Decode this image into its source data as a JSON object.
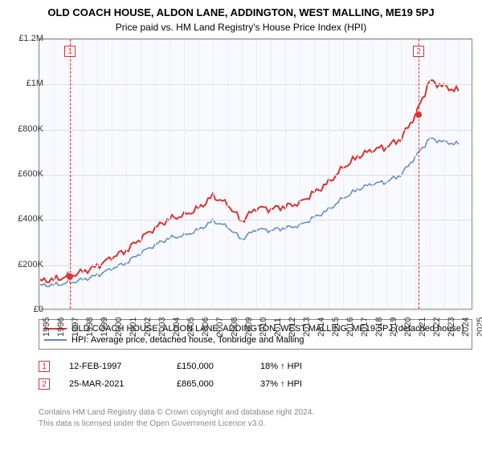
{
  "title": "OLD COACH HOUSE, ALDON LANE, ADDINGTON, WEST MALLING, ME19 5PJ",
  "subtitle": "Price paid vs. HM Land Registry's House Price Index (HPI)",
  "chart": {
    "type": "line",
    "background_color": "#f8faff",
    "border_color": "#888888",
    "grid_color": "#dddddd",
    "title_fontsize": 13,
    "subtitle_fontsize": 12,
    "axis_fontsize": 11,
    "y_axis": {
      "min": 0,
      "max": 1200000,
      "ticks": [
        0,
        200000,
        400000,
        600000,
        800000,
        1000000,
        1200000
      ],
      "labels": [
        "£0",
        "£200K",
        "£400K",
        "£600K",
        "£800K",
        "£1M",
        "£1.2M"
      ]
    },
    "x_axis": {
      "min": 1995,
      "max": 2025,
      "ticks": [
        1995,
        1996,
        1997,
        1998,
        1999,
        2000,
        2001,
        2002,
        2003,
        2004,
        2005,
        2006,
        2007,
        2008,
        2009,
        2010,
        2011,
        2012,
        2013,
        2014,
        2015,
        2016,
        2017,
        2018,
        2019,
        2020,
        2021,
        2022,
        2023,
        2024,
        2025
      ]
    },
    "series": [
      {
        "name": "property",
        "label": "OLD COACH HOUSE, ALDON LANE, ADDINGTON, WEST MALLING, ME19 5PJ (detached house)",
        "color": "#e03030",
        "line_width": 2,
        "data": [
          [
            1995,
            130000
          ],
          [
            1996,
            135000
          ],
          [
            1997,
            150000
          ],
          [
            1998,
            170000
          ],
          [
            1999,
            195000
          ],
          [
            2000,
            235000
          ],
          [
            2001,
            265000
          ],
          [
            2002,
            320000
          ],
          [
            2003,
            365000
          ],
          [
            2004,
            405000
          ],
          [
            2005,
            420000
          ],
          [
            2006,
            450000
          ],
          [
            2007,
            505000
          ],
          [
            2008,
            470000
          ],
          [
            2009,
            395000
          ],
          [
            2010,
            455000
          ],
          [
            2011,
            450000
          ],
          [
            2012,
            460000
          ],
          [
            2013,
            475000
          ],
          [
            2014,
            520000
          ],
          [
            2015,
            565000
          ],
          [
            2016,
            630000
          ],
          [
            2017,
            680000
          ],
          [
            2018,
            710000
          ],
          [
            2019,
            725000
          ],
          [
            2020,
            760000
          ],
          [
            2021,
            865000
          ],
          [
            2022,
            1015000
          ],
          [
            2023,
            990000
          ],
          [
            2024,
            970000
          ]
        ]
      },
      {
        "name": "hpi",
        "label": "HPI: Average price, detached house, Tonbridge and Malling",
        "color": "#6088c0",
        "line_width": 1.5,
        "data": [
          [
            1995,
            110000
          ],
          [
            1996,
            112000
          ],
          [
            1997,
            120000
          ],
          [
            1998,
            135000
          ],
          [
            1999,
            155000
          ],
          [
            2000,
            185000
          ],
          [
            2001,
            210000
          ],
          [
            2002,
            255000
          ],
          [
            2003,
            290000
          ],
          [
            2004,
            320000
          ],
          [
            2005,
            330000
          ],
          [
            2006,
            355000
          ],
          [
            2007,
            395000
          ],
          [
            2008,
            370000
          ],
          [
            2009,
            315000
          ],
          [
            2010,
            360000
          ],
          [
            2011,
            355000
          ],
          [
            2012,
            365000
          ],
          [
            2013,
            375000
          ],
          [
            2014,
            410000
          ],
          [
            2015,
            445000
          ],
          [
            2016,
            495000
          ],
          [
            2017,
            535000
          ],
          [
            2018,
            560000
          ],
          [
            2019,
            570000
          ],
          [
            2020,
            600000
          ],
          [
            2021,
            680000
          ],
          [
            2022,
            760000
          ],
          [
            2023,
            745000
          ],
          [
            2024,
            735000
          ]
        ]
      }
    ],
    "sale_markers": [
      {
        "index": 1,
        "year": 1997.12,
        "value": 150000,
        "color": "#e03030"
      },
      {
        "index": 2,
        "year": 2021.23,
        "value": 865000,
        "color": "#e03030"
      }
    ]
  },
  "legend": {
    "border_color": "#888888",
    "items": [
      {
        "color": "#e03030",
        "width": 2,
        "label": "OLD COACH HOUSE, ALDON LANE, ADDINGTON, WEST MALLING, ME19 5PJ (detached house)"
      },
      {
        "color": "#6088c0",
        "width": 1.5,
        "label": "HPI: Average price, detached house, Tonbridge and Malling"
      }
    ]
  },
  "sales": [
    {
      "index": "1",
      "date": "12-FEB-1997",
      "price": "£150,000",
      "pct": "18% ↑ HPI",
      "color": "#e03030"
    },
    {
      "index": "2",
      "date": "25-MAR-2021",
      "price": "£865,000",
      "pct": "37% ↑ HPI",
      "color": "#e03030"
    }
  ],
  "attribution": {
    "line1": "Contains HM Land Registry data © Crown copyright and database right 2024.",
    "line2": "This data is licensed under the Open Government Licence v3.0."
  }
}
